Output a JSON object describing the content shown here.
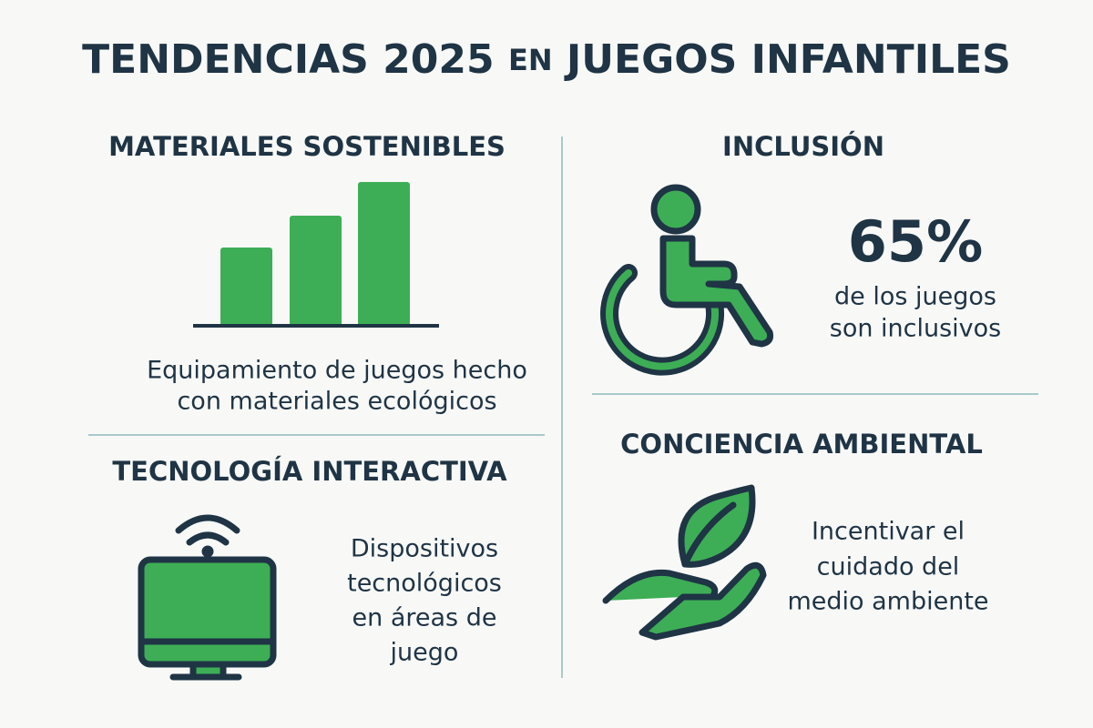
{
  "header": {
    "title": [
      "TENDENCIAS 2025",
      "EN",
      "JUEGOS INFANTILES"
    ]
  },
  "sections": [
    {
      "heading": "MATERIALES SOSTENIBLES",
      "lines": [
        "Equipamiento de juegos hecho",
        "con materiales ecológicos"
      ]
    },
    {
      "heading": "INCLUSIÓN",
      "stat": "65%",
      "lines": [
        "de los juegos",
        "son inclusivos"
      ]
    },
    {
      "heading": "TECNOLOGÍA INTERACTIVA",
      "lines": [
        "Dispositivos",
        "tecnológicos",
        "en áreas de",
        "juego"
      ]
    },
    {
      "heading": "CONCIENCIA AMBIENTAL",
      "lines": [
        "Incentivar el",
        "cuidado del",
        "medio ambiente"
      ]
    }
  ]
}
